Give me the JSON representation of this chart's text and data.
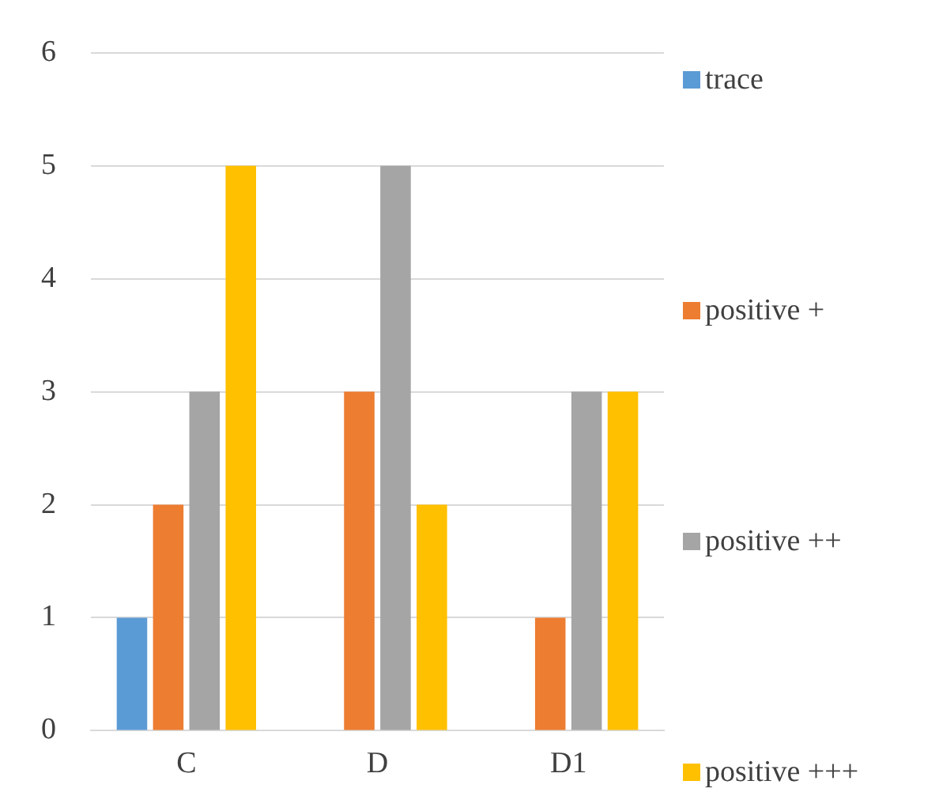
{
  "chart_data": {
    "type": "bar",
    "categories": [
      "C",
      "D",
      "D1"
    ],
    "series": [
      {
        "name": "trace",
        "color": "#5b9bd5",
        "values": [
          1,
          null,
          null
        ]
      },
      {
        "name": "positive +",
        "color": "#ed7d31",
        "values": [
          2,
          3,
          1
        ]
      },
      {
        "name": "positive ++",
        "color": "#a5a5a5",
        "values": [
          3,
          5,
          3
        ]
      },
      {
        "name": "positive +++",
        "color": "#ffc000",
        "values": [
          5,
          2,
          3
        ]
      }
    ],
    "ylim": [
      0,
      6
    ],
    "yticks": [
      0,
      1,
      2,
      3,
      4,
      5,
      6
    ],
    "grid": "y",
    "legend": "right"
  }
}
